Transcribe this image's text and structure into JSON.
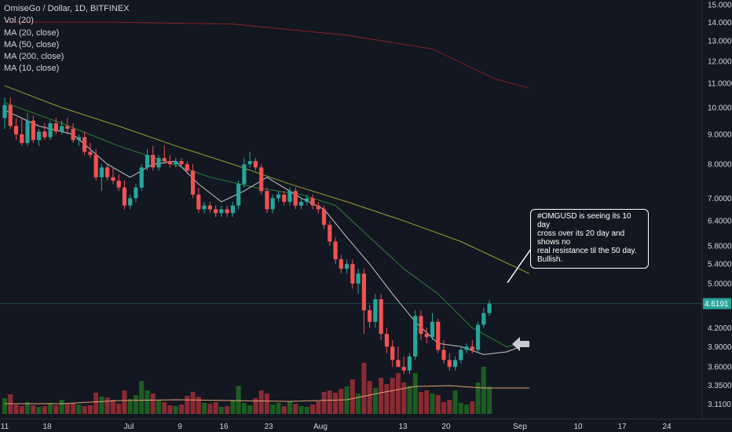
{
  "legend": {
    "title": "OmiseGo / Dollar, 1D, BITFINEX",
    "items": [
      "Vol (20)",
      "MA (20, close)",
      "MA (50, close)",
      "MA (200, close)",
      "MA (10, close)"
    ]
  },
  "annotation": {
    "lines": [
      "#OMGUSD is seeing its 10 day",
      "cross over its 20 day and shows no",
      "real resistance til the 50 day.",
      "Bullish."
    ]
  },
  "last_price": "4.6191",
  "colors": {
    "background": "#131722",
    "up": "#26a69a",
    "down": "#ef5350",
    "vol_up": "#1b5e20",
    "vol_down": "#8b2a33",
    "ma10": "#c8c8c8",
    "ma20": "#2e7d32",
    "ma50": "#9aa12a",
    "ma200": "#8b1f24",
    "vol_ma": "#e0a070",
    "arrow": "#c9ccd4"
  },
  "chart_data": {
    "type": "candlestick",
    "y_scale": "log",
    "ylim": [
      3.0,
      15.2
    ],
    "y_ticks": [
      "15.0000",
      "14.0000",
      "13.0000",
      "12.0000",
      "11.0000",
      "10.0000",
      "9.0000",
      "8.0000",
      "7.0000",
      "6.4000",
      "5.8000",
      "5.4000",
      "5.0000",
      "4.6191",
      "4.2000",
      "3.9000",
      "3.6000",
      "3.3500",
      "3.1100"
    ],
    "x_ticks": [
      "11",
      "18",
      "Jul",
      "9",
      "16",
      "23",
      "Aug",
      "13",
      "20",
      "Sep",
      "10",
      "17",
      "24"
    ],
    "candles": [
      {
        "date": "Jun 10",
        "o": 9.6,
        "h": 10.4,
        "l": 9.2,
        "c": 10.1
      },
      {
        "date": "Jun 11",
        "o": 10.1,
        "h": 10.4,
        "l": 9.2,
        "c": 9.3
      },
      {
        "date": "Jun 12",
        "o": 9.3,
        "h": 9.6,
        "l": 8.8,
        "c": 9.0
      },
      {
        "date": "Jun 13",
        "o": 9.0,
        "h": 9.6,
        "l": 8.6,
        "c": 8.7
      },
      {
        "date": "Jun 14",
        "o": 8.7,
        "h": 9.8,
        "l": 8.6,
        "c": 9.5
      },
      {
        "date": "Jun 15",
        "o": 9.5,
        "h": 9.7,
        "l": 8.7,
        "c": 8.8
      },
      {
        "date": "Jun 16",
        "o": 8.8,
        "h": 9.2,
        "l": 8.6,
        "c": 9.1
      },
      {
        "date": "Jun 17",
        "o": 9.1,
        "h": 9.4,
        "l": 8.8,
        "c": 8.9
      },
      {
        "date": "Jun 18",
        "o": 8.9,
        "h": 9.5,
        "l": 8.8,
        "c": 9.4
      },
      {
        "date": "Jun 19",
        "o": 9.4,
        "h": 9.6,
        "l": 9.0,
        "c": 9.1
      },
      {
        "date": "Jun 20",
        "o": 9.1,
        "h": 9.5,
        "l": 9.0,
        "c": 9.3
      },
      {
        "date": "Jun 21",
        "o": 9.3,
        "h": 9.6,
        "l": 9.0,
        "c": 9.2
      },
      {
        "date": "Jun 22",
        "o": 9.2,
        "h": 9.4,
        "l": 8.7,
        "c": 8.8
      },
      {
        "date": "Jun 23",
        "o": 8.8,
        "h": 9.0,
        "l": 8.6,
        "c": 8.9
      },
      {
        "date": "Jun 24",
        "o": 8.9,
        "h": 9.1,
        "l": 8.3,
        "c": 8.4
      },
      {
        "date": "Jun 25",
        "o": 8.4,
        "h": 8.7,
        "l": 8.2,
        "c": 8.3
      },
      {
        "date": "Jun 26",
        "o": 8.3,
        "h": 8.5,
        "l": 7.5,
        "c": 7.6
      },
      {
        "date": "Jun 27",
        "o": 7.6,
        "h": 8.0,
        "l": 7.2,
        "c": 7.9
      },
      {
        "date": "Jun 28",
        "o": 7.9,
        "h": 8.0,
        "l": 7.5,
        "c": 7.6
      },
      {
        "date": "Jun 29",
        "o": 7.6,
        "h": 7.9,
        "l": 7.4,
        "c": 7.5
      },
      {
        "date": "Jun 30",
        "o": 7.5,
        "h": 7.7,
        "l": 7.2,
        "c": 7.3
      },
      {
        "date": "Jul 1",
        "o": 7.3,
        "h": 7.5,
        "l": 6.7,
        "c": 6.8
      },
      {
        "date": "Jul 2",
        "o": 6.8,
        "h": 7.1,
        "l": 6.7,
        "c": 7.0
      },
      {
        "date": "Jul 3",
        "o": 7.0,
        "h": 7.4,
        "l": 6.9,
        "c": 7.3
      },
      {
        "date": "Jul 4",
        "o": 7.3,
        "h": 8.0,
        "l": 7.2,
        "c": 7.9
      },
      {
        "date": "Jul 5",
        "o": 7.9,
        "h": 8.5,
        "l": 7.8,
        "c": 8.3
      },
      {
        "date": "Jul 6",
        "o": 8.3,
        "h": 8.6,
        "l": 7.8,
        "c": 7.9
      },
      {
        "date": "Jul 7",
        "o": 7.9,
        "h": 8.3,
        "l": 7.8,
        "c": 8.2
      },
      {
        "date": "Jul 8",
        "o": 8.2,
        "h": 8.6,
        "l": 8.0,
        "c": 8.1
      },
      {
        "date": "Jul 9",
        "o": 8.1,
        "h": 8.3,
        "l": 7.9,
        "c": 8.0
      },
      {
        "date": "Jul 10",
        "o": 8.0,
        "h": 8.2,
        "l": 7.9,
        "c": 8.1
      },
      {
        "date": "Jul 11",
        "o": 8.1,
        "h": 8.2,
        "l": 7.9,
        "c": 8.0
      },
      {
        "date": "Jul 12",
        "o": 8.0,
        "h": 8.1,
        "l": 7.7,
        "c": 7.8
      },
      {
        "date": "Jul 13",
        "o": 7.8,
        "h": 8.0,
        "l": 7.0,
        "c": 7.1
      },
      {
        "date": "Jul 14",
        "o": 7.1,
        "h": 7.3,
        "l": 6.6,
        "c": 6.7
      },
      {
        "date": "Jul 15",
        "o": 6.7,
        "h": 6.9,
        "l": 6.6,
        "c": 6.8
      },
      {
        "date": "Jul 16",
        "o": 6.8,
        "h": 6.9,
        "l": 6.6,
        "c": 6.7
      },
      {
        "date": "Jul 17",
        "o": 6.7,
        "h": 6.8,
        "l": 6.5,
        "c": 6.6
      },
      {
        "date": "Jul 18",
        "o": 6.6,
        "h": 6.8,
        "l": 6.5,
        "c": 6.7
      },
      {
        "date": "Jul 19",
        "o": 6.7,
        "h": 6.8,
        "l": 6.5,
        "c": 6.6
      },
      {
        "date": "Jul 20",
        "o": 6.6,
        "h": 6.9,
        "l": 6.5,
        "c": 6.8
      },
      {
        "date": "Jul 21",
        "o": 6.8,
        "h": 7.5,
        "l": 6.7,
        "c": 7.4
      },
      {
        "date": "Jul 22",
        "o": 7.4,
        "h": 8.2,
        "l": 7.3,
        "c": 8.0
      },
      {
        "date": "Jul 23",
        "o": 8.0,
        "h": 8.4,
        "l": 7.9,
        "c": 8.1
      },
      {
        "date": "Jul 24",
        "o": 8.1,
        "h": 8.2,
        "l": 7.8,
        "c": 7.9
      },
      {
        "date": "Jul 25",
        "o": 7.9,
        "h": 8.0,
        "l": 7.1,
        "c": 7.2
      },
      {
        "date": "Jul 26",
        "o": 7.2,
        "h": 7.3,
        "l": 6.6,
        "c": 6.7
      },
      {
        "date": "Jul 27",
        "o": 6.7,
        "h": 7.1,
        "l": 6.6,
        "c": 7.0
      },
      {
        "date": "Jul 28",
        "o": 7.0,
        "h": 7.2,
        "l": 6.9,
        "c": 7.1
      },
      {
        "date": "Jul 29",
        "o": 7.1,
        "h": 7.2,
        "l": 6.8,
        "c": 6.9
      },
      {
        "date": "Jul 30",
        "o": 6.9,
        "h": 7.3,
        "l": 6.8,
        "c": 7.2
      },
      {
        "date": "Jul 31",
        "o": 7.2,
        "h": 7.3,
        "l": 6.7,
        "c": 6.8
      },
      {
        "date": "Aug 1",
        "o": 6.8,
        "h": 7.0,
        "l": 6.7,
        "c": 6.9
      },
      {
        "date": "Aug 2",
        "o": 6.9,
        "h": 7.1,
        "l": 6.8,
        "c": 7.0
      },
      {
        "date": "Aug 3",
        "o": 7.0,
        "h": 7.1,
        "l": 6.7,
        "c": 6.8
      },
      {
        "date": "Aug 4",
        "o": 6.8,
        "h": 6.9,
        "l": 6.6,
        "c": 6.7
      },
      {
        "date": "Aug 5",
        "o": 6.7,
        "h": 6.8,
        "l": 6.2,
        "c": 6.3
      },
      {
        "date": "Aug 6",
        "o": 6.3,
        "h": 6.4,
        "l": 5.8,
        "c": 5.9
      },
      {
        "date": "Aug 7",
        "o": 5.9,
        "h": 6.0,
        "l": 5.4,
        "c": 5.5
      },
      {
        "date": "Aug 8",
        "o": 5.5,
        "h": 5.6,
        "l": 5.2,
        "c": 5.3
      },
      {
        "date": "Aug 9",
        "o": 5.3,
        "h": 5.5,
        "l": 5.2,
        "c": 5.4
      },
      {
        "date": "Aug 10",
        "o": 5.4,
        "h": 5.5,
        "l": 4.9,
        "c": 5.0
      },
      {
        "date": "Aug 11",
        "o": 5.0,
        "h": 5.3,
        "l": 4.8,
        "c": 5.2
      },
      {
        "date": "Aug 12",
        "o": 5.2,
        "h": 5.3,
        "l": 4.1,
        "c": 4.5
      },
      {
        "date": "Aug 13",
        "o": 4.5,
        "h": 4.6,
        "l": 4.2,
        "c": 4.3
      },
      {
        "date": "Aug 14",
        "o": 4.3,
        "h": 4.8,
        "l": 4.2,
        "c": 4.7
      },
      {
        "date": "Aug 15",
        "o": 4.7,
        "h": 4.8,
        "l": 4.0,
        "c": 4.1
      },
      {
        "date": "Aug 16",
        "o": 4.1,
        "h": 4.2,
        "l": 3.8,
        "c": 3.9
      },
      {
        "date": "Aug 17",
        "o": 3.9,
        "h": 4.0,
        "l": 3.6,
        "c": 3.7
      },
      {
        "date": "Aug 18",
        "o": 3.7,
        "h": 3.9,
        "l": 3.6,
        "c": 3.6
      },
      {
        "date": "Aug 19",
        "o": 3.6,
        "h": 3.75,
        "l": 3.5,
        "c": 3.55
      },
      {
        "date": "Aug 20",
        "o": 3.55,
        "h": 3.8,
        "l": 3.5,
        "c": 3.75
      },
      {
        "date": "Aug 21",
        "o": 3.75,
        "h": 4.5,
        "l": 3.7,
        "c": 4.4
      },
      {
        "date": "Aug 22",
        "o": 4.4,
        "h": 4.5,
        "l": 4.0,
        "c": 4.1
      },
      {
        "date": "Aug 23",
        "o": 4.1,
        "h": 4.2,
        "l": 3.95,
        "c": 4.05
      },
      {
        "date": "Aug 24",
        "o": 4.05,
        "h": 4.45,
        "l": 4.0,
        "c": 4.3
      },
      {
        "date": "Aug 25",
        "o": 4.3,
        "h": 4.35,
        "l": 3.8,
        "c": 3.85
      },
      {
        "date": "Aug 26",
        "o": 3.85,
        "h": 4.0,
        "l": 3.65,
        "c": 3.7
      },
      {
        "date": "Aug 27",
        "o": 3.7,
        "h": 3.8,
        "l": 3.55,
        "c": 3.6
      },
      {
        "date": "Aug 28",
        "o": 3.6,
        "h": 3.75,
        "l": 3.55,
        "c": 3.7
      },
      {
        "date": "Aug 29",
        "o": 3.7,
        "h": 3.9,
        "l": 3.65,
        "c": 3.85
      },
      {
        "date": "Aug 30",
        "o": 3.85,
        "h": 3.95,
        "l": 3.8,
        "c": 3.9
      },
      {
        "date": "Aug 31",
        "o": 3.9,
        "h": 4.0,
        "l": 3.8,
        "c": 3.85
      },
      {
        "date": "Sep 1",
        "o": 3.85,
        "h": 4.3,
        "l": 3.8,
        "c": 4.25
      },
      {
        "date": "Sep 2",
        "o": 4.25,
        "h": 4.55,
        "l": 4.2,
        "c": 4.45
      },
      {
        "date": "Sep 3",
        "o": 4.45,
        "h": 4.68,
        "l": 4.4,
        "c": 4.62
      }
    ],
    "volume": [
      0.2,
      0.25,
      0.12,
      0.1,
      0.15,
      0.11,
      0.09,
      0.1,
      0.14,
      0.11,
      0.18,
      0.13,
      0.14,
      0.12,
      0.1,
      0.11,
      0.27,
      0.22,
      0.21,
      0.18,
      0.13,
      0.3,
      0.19,
      0.24,
      0.42,
      0.3,
      0.26,
      0.18,
      0.15,
      0.11,
      0.1,
      0.12,
      0.23,
      0.28,
      0.22,
      0.14,
      0.13,
      0.15,
      0.09,
      0.1,
      0.18,
      0.36,
      0.14,
      0.11,
      0.2,
      0.3,
      0.26,
      0.12,
      0.14,
      0.1,
      0.16,
      0.13,
      0.1,
      0.09,
      0.12,
      0.16,
      0.28,
      0.3,
      0.27,
      0.32,
      0.35,
      0.44,
      0.26,
      0.65,
      0.42,
      0.33,
      0.46,
      0.38,
      0.46,
      0.52,
      0.4,
      0.36,
      0.52,
      0.28,
      0.3,
      0.26,
      0.24,
      0.15,
      0.18,
      0.3,
      0.14,
      0.12,
      0.16,
      0.4,
      0.6,
      0.35
    ],
    "ma200": [
      [
        0,
        14.0
      ],
      [
        20,
        14.0
      ],
      [
        40,
        13.9
      ],
      [
        60,
        13.3
      ],
      [
        75,
        12.6
      ],
      [
        86,
        11.2
      ],
      [
        92,
        10.8
      ]
    ],
    "ma50": [
      [
        0,
        10.9
      ],
      [
        10,
        10.0
      ],
      [
        20,
        9.3
      ],
      [
        30,
        8.6
      ],
      [
        40,
        8.0
      ],
      [
        50,
        7.4
      ],
      [
        60,
        6.9
      ],
      [
        70,
        6.4
      ],
      [
        80,
        5.9
      ],
      [
        92,
        5.2
      ]
    ],
    "ma20": [
      [
        0,
        10.2
      ],
      [
        10,
        9.4
      ],
      [
        20,
        8.6
      ],
      [
        28,
        8.1
      ],
      [
        36,
        7.6
      ],
      [
        44,
        7.3
      ],
      [
        52,
        7.1
      ],
      [
        58,
        6.8
      ],
      [
        64,
        6.0
      ],
      [
        70,
        5.3
      ],
      [
        76,
        4.8
      ],
      [
        82,
        4.2
      ],
      [
        88,
        3.9
      ],
      [
        92,
        3.95
      ]
    ],
    "ma10": [
      [
        0,
        9.9
      ],
      [
        6,
        9.3
      ],
      [
        12,
        9.0
      ],
      [
        18,
        8.0
      ],
      [
        22,
        7.6
      ],
      [
        26,
        8.0
      ],
      [
        30,
        8.1
      ],
      [
        34,
        7.4
      ],
      [
        38,
        6.9
      ],
      [
        42,
        7.2
      ],
      [
        46,
        7.6
      ],
      [
        52,
        7.0
      ],
      [
        56,
        6.7
      ],
      [
        60,
        6.0
      ],
      [
        64,
        5.4
      ],
      [
        68,
        4.8
      ],
      [
        72,
        4.3
      ],
      [
        76,
        3.95
      ],
      [
        80,
        3.9
      ],
      [
        84,
        3.78
      ],
      [
        88,
        3.82
      ],
      [
        92,
        3.95
      ]
    ],
    "vol_ma": [
      [
        0,
        0.13
      ],
      [
        10,
        0.13
      ],
      [
        20,
        0.17
      ],
      [
        30,
        0.18
      ],
      [
        40,
        0.17
      ],
      [
        50,
        0.16
      ],
      [
        60,
        0.18
      ],
      [
        66,
        0.27
      ],
      [
        72,
        0.35
      ],
      [
        78,
        0.36
      ],
      [
        84,
        0.33
      ],
      [
        92,
        0.33
      ]
    ]
  }
}
